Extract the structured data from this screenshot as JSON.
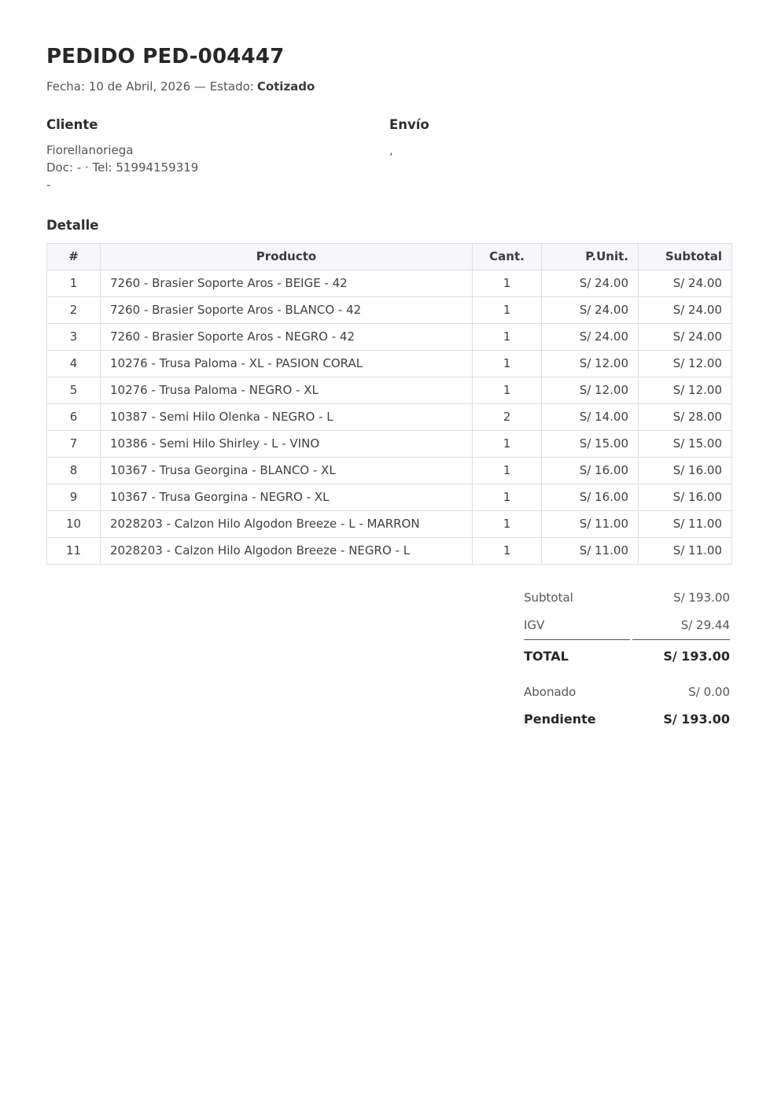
{
  "header": {
    "title": "PEDIDO PED-004447",
    "meta_prefix": "Fecha: 10 de Abril, 2026 — Estado:",
    "estado": "Cotizado"
  },
  "cliente": {
    "heading": "Cliente",
    "name": "Fiorellanoriega",
    "doc_tel": "Doc: - · Tel: 51994159319",
    "address": "-"
  },
  "envio": {
    "heading": "Envío",
    "address": ","
  },
  "detalle": {
    "heading": "Detalle",
    "columns": {
      "num": "#",
      "producto": "Producto",
      "cant": "Cant.",
      "punit": "P.Unit.",
      "subtotal": "Subtotal"
    },
    "rows": [
      {
        "num": "1",
        "producto": "7260 - Brasier Soporte Aros - BEIGE - 42",
        "cant": "1",
        "punit": "S/ 24.00",
        "subtotal": "S/ 24.00"
      },
      {
        "num": "2",
        "producto": "7260 - Brasier Soporte Aros - BLANCO - 42",
        "cant": "1",
        "punit": "S/ 24.00",
        "subtotal": "S/ 24.00"
      },
      {
        "num": "3",
        "producto": "7260 - Brasier Soporte Aros - NEGRO - 42",
        "cant": "1",
        "punit": "S/ 24.00",
        "subtotal": "S/ 24.00"
      },
      {
        "num": "4",
        "producto": "10276 - Trusa Paloma - XL - PASION CORAL",
        "cant": "1",
        "punit": "S/ 12.00",
        "subtotal": "S/ 12.00"
      },
      {
        "num": "5",
        "producto": "10276 - Trusa Paloma - NEGRO - XL",
        "cant": "1",
        "punit": "S/ 12.00",
        "subtotal": "S/ 12.00"
      },
      {
        "num": "6",
        "producto": "10387 - Semi Hilo Olenka - NEGRO - L",
        "cant": "2",
        "punit": "S/ 14.00",
        "subtotal": "S/ 28.00"
      },
      {
        "num": "7",
        "producto": "10386 - Semi Hilo Shirley - L - VINO",
        "cant": "1",
        "punit": "S/ 15.00",
        "subtotal": "S/ 15.00"
      },
      {
        "num": "8",
        "producto": "10367 - Trusa Georgina - BLANCO - XL",
        "cant": "1",
        "punit": "S/ 16.00",
        "subtotal": "S/ 16.00"
      },
      {
        "num": "9",
        "producto": "10367 - Trusa Georgina - NEGRO - XL",
        "cant": "1",
        "punit": "S/ 16.00",
        "subtotal": "S/ 16.00"
      },
      {
        "num": "10",
        "producto": "2028203 - Calzon Hilo Algodon Breeze - L - MARRON",
        "cant": "1",
        "punit": "S/ 11.00",
        "subtotal": "S/ 11.00"
      },
      {
        "num": "11",
        "producto": "2028203 - Calzon Hilo Algodon Breeze - NEGRO - L",
        "cant": "1",
        "punit": "S/ 11.00",
        "subtotal": "S/ 11.00"
      }
    ]
  },
  "totales": {
    "subtotal_label": "Subtotal",
    "subtotal_value": "S/ 193.00",
    "igv_label": "IGV",
    "igv_value": "S/ 29.44",
    "total_label": "TOTAL",
    "total_value": "S/ 193.00",
    "abonado_label": "Abonado",
    "abonado_value": "S/ 0.00",
    "pendiente_label": "Pendiente",
    "pendiente_value": "S/ 193.00"
  },
  "colors": {
    "heading_text": "#27272a",
    "body_text": "#55555c",
    "table_border": "#dfdfe4",
    "table_header_bg": "#f7f7f9",
    "totals_divider": "#55555c"
  }
}
